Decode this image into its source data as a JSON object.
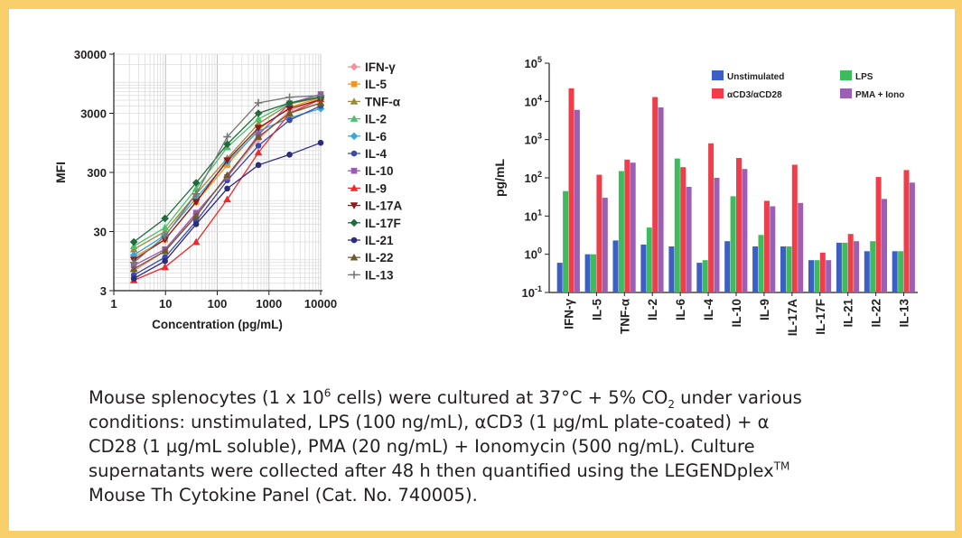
{
  "colors": {
    "background": "#f9cf6c",
    "panel": "#ffffff",
    "text": "#231f20"
  },
  "chart_data": [
    {
      "type": "line",
      "xlabel": "Concentration (pg/mL)",
      "ylabel": "MFI",
      "xscale": "log",
      "yscale": "log",
      "xlim": [
        1,
        10000
      ],
      "ylim": [
        3,
        30000
      ],
      "xticks": [
        "1",
        "10",
        "100",
        "1000",
        "10000"
      ],
      "yticks": [
        "3",
        "30",
        "300",
        "3000",
        "30000"
      ],
      "grid": true,
      "legend_position": "right",
      "x": [
        2.44,
        9.77,
        39.1,
        156,
        625,
        2500,
        10000
      ],
      "series": [
        {
          "name": "IFN-γ",
          "color": "#f48fa0",
          "marker": "diamond",
          "values": [
            6.5,
            14,
            60,
            250,
            1100,
            3300,
            5400
          ]
        },
        {
          "name": "IL-5",
          "color": "#f7941d",
          "marker": "square",
          "values": [
            11,
            22,
            95,
            400,
            1600,
            3800,
            5500
          ]
        },
        {
          "name": "TNF-α",
          "color": "#9a8a3c",
          "marker": "triangle",
          "values": [
            15,
            30,
            130,
            520,
            2000,
            4300,
            5600
          ]
        },
        {
          "name": "IL-2",
          "color": "#4ec06a",
          "marker": "triangle",
          "values": [
            17,
            35,
            160,
            800,
            2400,
            4500,
            5800
          ]
        },
        {
          "name": "IL-6",
          "color": "#38a8d8",
          "marker": "diamond",
          "values": [
            12,
            26,
            110,
            450,
            1500,
            2500,
            3600
          ]
        },
        {
          "name": "IL-4",
          "color": "#3c4aa8",
          "marker": "circle",
          "values": [
            5.5,
            11,
            45,
            220,
            850,
            2300,
            4000
          ]
        },
        {
          "name": "IL-10",
          "color": "#9b59b6",
          "marker": "square",
          "values": [
            8,
            15,
            62,
            250,
            1300,
            4400,
            6300
          ]
        },
        {
          "name": "IL-9",
          "color": "#ee2a2a",
          "marker": "triangle",
          "values": [
            4.5,
            7.5,
            20,
            105,
            650,
            3000,
            5200
          ]
        },
        {
          "name": "IL-17A",
          "color": "#8b1a1a",
          "marker": "triangle-down",
          "values": [
            10,
            22,
            95,
            480,
            1700,
            3600,
            5100
          ]
        },
        {
          "name": "IL-17F",
          "color": "#1f6b3b",
          "marker": "diamond",
          "values": [
            20,
            50,
            200,
            900,
            3000,
            4500,
            5600
          ]
        },
        {
          "name": "IL-21",
          "color": "#2c2c7a",
          "marker": "circle",
          "values": [
            4.8,
            9.5,
            40,
            160,
            400,
            600,
            950
          ]
        },
        {
          "name": "IL-22",
          "color": "#6f5a2a",
          "marker": "triangle",
          "values": [
            7,
            14,
            55,
            270,
            1200,
            3000,
            4500
          ]
        },
        {
          "name": "IL-13",
          "color": "#777777",
          "marker": "plus",
          "values": [
            9,
            25,
            130,
            1200,
            4500,
            5600,
            6000
          ]
        }
      ]
    },
    {
      "type": "bar",
      "xlabel": "",
      "ylabel": "pg/mL",
      "yscale": "log",
      "ylim": [
        0.1,
        100000
      ],
      "yticks": [
        {
          "base": "10",
          "exp": "-1"
        },
        {
          "base": "10",
          "exp": "0"
        },
        {
          "base": "10",
          "exp": "1"
        },
        {
          "base": "10",
          "exp": "2"
        },
        {
          "base": "10",
          "exp": "3"
        },
        {
          "base": "10",
          "exp": "4"
        },
        {
          "base": "10",
          "exp": "5"
        }
      ],
      "legend_position": "top-right",
      "categories": [
        "IFN-γ",
        "IL-5",
        "TNF-α",
        "IL-2",
        "IL-6",
        "IL-4",
        "IL-10",
        "IL-9",
        "IL-17A",
        "IL-17F",
        "IL-21",
        "IL-22",
        "IL-13"
      ],
      "series": [
        {
          "name": "Unstimulated",
          "color": "#3b5fc4",
          "values": [
            0.6,
            1.0,
            2.3,
            1.8,
            1.6,
            0.6,
            2.2,
            1.6,
            1.6,
            0.7,
            2.0,
            1.2,
            1.2
          ]
        },
        {
          "name": "LPS",
          "color": "#3dbb5d",
          "values": [
            45,
            1.0,
            150,
            5,
            320,
            0.7,
            33,
            3.2,
            1.6,
            0.7,
            2.0,
            2.2,
            1.2
          ]
        },
        {
          "name": "αCD3/αCD28",
          "color": "#ef3e4a",
          "values": [
            22000,
            120,
            300,
            13000,
            190,
            800,
            330,
            25,
            220,
            1.1,
            3.4,
            105,
            160
          ]
        },
        {
          "name": "PMA + Iono",
          "color": "#9b5fb5",
          "values": [
            6000,
            30,
            250,
            7000,
            58,
            100,
            170,
            18,
            22,
            0.7,
            2.2,
            28,
            75
          ]
        }
      ]
    }
  ],
  "caption": {
    "line1_a": "Mouse splenocytes (1 x 10",
    "line1_sup": "6",
    "line1_b": " cells) were cultured at 37°C + 5% CO",
    "line1_sub": "2",
    "line1_c": " under various",
    "line2": "conditions: unstimulated, LPS (100 ng/mL), αCD3 (1 µg/mL plate-coated) + α",
    "line3": "CD28 (1 µg/mL soluble), PMA (20 ng/mL) + Ionomycin (500 ng/mL). Culture",
    "line4_a": "supernatants were collected after 48 h then quantified using the LEGENDplex",
    "line4_sup": "TM",
    "line5": "Mouse Th Cytokine Panel (Cat. No. 740005)."
  }
}
